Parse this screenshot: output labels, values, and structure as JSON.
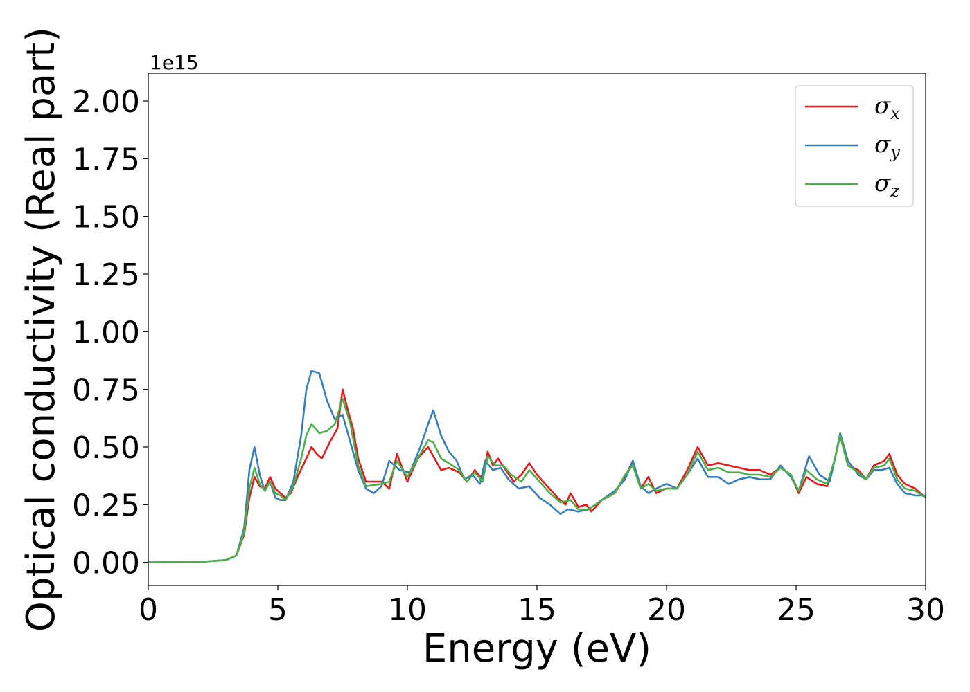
{
  "chart_data": {
    "type": "line",
    "title": "",
    "xlabel": "Energy (eV)",
    "ylabel": "Optical conductivity (Real part)",
    "y_offset_label": "1e15",
    "xlim": [
      0,
      30
    ],
    "ylim": [
      -0.1,
      2.12
    ],
    "x_ticks": [
      0,
      5,
      10,
      15,
      20,
      25,
      30
    ],
    "x_tick_labels": [
      "0",
      "5",
      "10",
      "15",
      "20",
      "25",
      "30"
    ],
    "y_ticks": [
      0.0,
      0.25,
      0.5,
      0.75,
      1.0,
      1.25,
      1.5,
      1.75,
      2.0
    ],
    "y_tick_labels": [
      "0.00",
      "0.25",
      "0.50",
      "0.75",
      "1.00",
      "1.25",
      "1.50",
      "1.75",
      "2.00"
    ],
    "grid": false,
    "legend_position": "top-right",
    "series": [
      {
        "name": "σx",
        "symbol": "σ",
        "subscript": "x",
        "color": "#e41a1c",
        "points": [
          [
            0,
            0
          ],
          [
            2,
            0.002
          ],
          [
            3,
            0.01
          ],
          [
            3.4,
            0.03
          ],
          [
            3.7,
            0.12
          ],
          [
            3.9,
            0.28
          ],
          [
            4.1,
            0.37
          ],
          [
            4.3,
            0.33
          ],
          [
            4.5,
            0.32
          ],
          [
            4.7,
            0.37
          ],
          [
            4.9,
            0.32
          ],
          [
            5.1,
            0.3
          ],
          [
            5.3,
            0.28
          ],
          [
            5.5,
            0.3
          ],
          [
            5.8,
            0.38
          ],
          [
            6.1,
            0.45
          ],
          [
            6.3,
            0.5
          ],
          [
            6.5,
            0.47
          ],
          [
            6.7,
            0.45
          ],
          [
            7.0,
            0.52
          ],
          [
            7.3,
            0.58
          ],
          [
            7.5,
            0.75
          ],
          [
            7.7,
            0.66
          ],
          [
            7.9,
            0.58
          ],
          [
            8.1,
            0.45
          ],
          [
            8.4,
            0.35
          ],
          [
            9.0,
            0.35
          ],
          [
            9.3,
            0.32
          ],
          [
            9.6,
            0.47
          ],
          [
            10.0,
            0.35
          ],
          [
            10.4,
            0.45
          ],
          [
            10.8,
            0.5
          ],
          [
            11.0,
            0.46
          ],
          [
            11.3,
            0.4
          ],
          [
            11.6,
            0.41
          ],
          [
            12.0,
            0.39
          ],
          [
            12.3,
            0.35
          ],
          [
            12.6,
            0.4
          ],
          [
            12.9,
            0.36
          ],
          [
            13.1,
            0.48
          ],
          [
            13.3,
            0.42
          ],
          [
            13.5,
            0.45
          ],
          [
            13.8,
            0.4
          ],
          [
            14.1,
            0.35
          ],
          [
            14.4,
            0.38
          ],
          [
            14.7,
            0.43
          ],
          [
            15.0,
            0.38
          ],
          [
            15.4,
            0.33
          ],
          [
            15.8,
            0.28
          ],
          [
            16.1,
            0.25
          ],
          [
            16.3,
            0.3
          ],
          [
            16.6,
            0.24
          ],
          [
            16.9,
            0.25
          ],
          [
            17.1,
            0.22
          ],
          [
            17.5,
            0.27
          ],
          [
            18.0,
            0.3
          ],
          [
            18.4,
            0.37
          ],
          [
            18.7,
            0.44
          ],
          [
            19.0,
            0.32
          ],
          [
            19.3,
            0.37
          ],
          [
            19.6,
            0.3
          ],
          [
            20.0,
            0.32
          ],
          [
            20.4,
            0.32
          ],
          [
            20.8,
            0.4
          ],
          [
            21.2,
            0.5
          ],
          [
            21.6,
            0.42
          ],
          [
            22.0,
            0.43
          ],
          [
            22.4,
            0.42
          ],
          [
            22.8,
            0.41
          ],
          [
            23.2,
            0.4
          ],
          [
            23.6,
            0.4
          ],
          [
            24.0,
            0.38
          ],
          [
            24.4,
            0.41
          ],
          [
            24.8,
            0.38
          ],
          [
            25.1,
            0.3
          ],
          [
            25.4,
            0.37
          ],
          [
            25.8,
            0.34
          ],
          [
            26.2,
            0.33
          ],
          [
            26.5,
            0.45
          ],
          [
            26.7,
            0.55
          ],
          [
            27.0,
            0.42
          ],
          [
            27.4,
            0.4
          ],
          [
            27.7,
            0.36
          ],
          [
            28.0,
            0.42
          ],
          [
            28.4,
            0.44
          ],
          [
            28.6,
            0.47
          ],
          [
            28.9,
            0.38
          ],
          [
            29.2,
            0.34
          ],
          [
            29.6,
            0.32
          ],
          [
            30,
            0.28
          ]
        ]
      },
      {
        "name": "σy",
        "symbol": "σ",
        "subscript": "y",
        "color": "#377eb8",
        "points": [
          [
            0,
            0
          ],
          [
            2,
            0.002
          ],
          [
            3,
            0.01
          ],
          [
            3.4,
            0.03
          ],
          [
            3.7,
            0.15
          ],
          [
            3.9,
            0.4
          ],
          [
            4.1,
            0.5
          ],
          [
            4.3,
            0.38
          ],
          [
            4.5,
            0.31
          ],
          [
            4.7,
            0.35
          ],
          [
            4.9,
            0.28
          ],
          [
            5.1,
            0.27
          ],
          [
            5.3,
            0.27
          ],
          [
            5.6,
            0.35
          ],
          [
            5.9,
            0.55
          ],
          [
            6.1,
            0.75
          ],
          [
            6.3,
            0.83
          ],
          [
            6.6,
            0.82
          ],
          [
            6.9,
            0.7
          ],
          [
            7.2,
            0.62
          ],
          [
            7.5,
            0.64
          ],
          [
            7.8,
            0.52
          ],
          [
            8.1,
            0.4
          ],
          [
            8.4,
            0.32
          ],
          [
            8.7,
            0.3
          ],
          [
            9.0,
            0.33
          ],
          [
            9.3,
            0.44
          ],
          [
            9.7,
            0.4
          ],
          [
            10.1,
            0.39
          ],
          [
            10.5,
            0.5
          ],
          [
            10.8,
            0.6
          ],
          [
            11.0,
            0.66
          ],
          [
            11.3,
            0.55
          ],
          [
            11.6,
            0.48
          ],
          [
            11.9,
            0.44
          ],
          [
            12.2,
            0.36
          ],
          [
            12.5,
            0.38
          ],
          [
            12.8,
            0.34
          ],
          [
            13.0,
            0.44
          ],
          [
            13.3,
            0.4
          ],
          [
            13.6,
            0.41
          ],
          [
            13.9,
            0.36
          ],
          [
            14.3,
            0.32
          ],
          [
            14.7,
            0.33
          ],
          [
            15.1,
            0.28
          ],
          [
            15.5,
            0.25
          ],
          [
            15.9,
            0.21
          ],
          [
            16.2,
            0.23
          ],
          [
            16.6,
            0.22
          ],
          [
            17.0,
            0.23
          ],
          [
            17.5,
            0.27
          ],
          [
            18.0,
            0.31
          ],
          [
            18.4,
            0.36
          ],
          [
            18.7,
            0.44
          ],
          [
            19.0,
            0.33
          ],
          [
            19.3,
            0.3
          ],
          [
            19.6,
            0.32
          ],
          [
            20.0,
            0.34
          ],
          [
            20.4,
            0.32
          ],
          [
            20.8,
            0.38
          ],
          [
            21.2,
            0.45
          ],
          [
            21.6,
            0.37
          ],
          [
            22.0,
            0.37
          ],
          [
            22.4,
            0.34
          ],
          [
            22.8,
            0.36
          ],
          [
            23.2,
            0.37
          ],
          [
            23.6,
            0.36
          ],
          [
            24.0,
            0.36
          ],
          [
            24.4,
            0.42
          ],
          [
            24.8,
            0.37
          ],
          [
            25.1,
            0.31
          ],
          [
            25.5,
            0.46
          ],
          [
            25.9,
            0.38
          ],
          [
            26.3,
            0.35
          ],
          [
            26.5,
            0.45
          ],
          [
            26.7,
            0.56
          ],
          [
            27.0,
            0.44
          ],
          [
            27.4,
            0.38
          ],
          [
            27.7,
            0.36
          ],
          [
            28.0,
            0.4
          ],
          [
            28.3,
            0.4
          ],
          [
            28.6,
            0.41
          ],
          [
            28.9,
            0.34
          ],
          [
            29.2,
            0.3
          ],
          [
            29.6,
            0.29
          ],
          [
            30,
            0.29
          ]
        ]
      },
      {
        "name": "σz",
        "symbol": "σ",
        "subscript": "z",
        "color": "#4daf4a",
        "points": [
          [
            0,
            0
          ],
          [
            2,
            0.002
          ],
          [
            3,
            0.01
          ],
          [
            3.4,
            0.03
          ],
          [
            3.7,
            0.13
          ],
          [
            3.9,
            0.32
          ],
          [
            4.1,
            0.41
          ],
          [
            4.3,
            0.34
          ],
          [
            4.5,
            0.31
          ],
          [
            4.7,
            0.35
          ],
          [
            4.9,
            0.3
          ],
          [
            5.1,
            0.29
          ],
          [
            5.3,
            0.27
          ],
          [
            5.6,
            0.33
          ],
          [
            5.9,
            0.45
          ],
          [
            6.1,
            0.55
          ],
          [
            6.3,
            0.6
          ],
          [
            6.6,
            0.56
          ],
          [
            6.9,
            0.57
          ],
          [
            7.2,
            0.6
          ],
          [
            7.5,
            0.71
          ],
          [
            7.8,
            0.6
          ],
          [
            8.1,
            0.42
          ],
          [
            8.4,
            0.33
          ],
          [
            9.0,
            0.34
          ],
          [
            9.3,
            0.35
          ],
          [
            9.6,
            0.44
          ],
          [
            10.0,
            0.37
          ],
          [
            10.4,
            0.45
          ],
          [
            10.8,
            0.53
          ],
          [
            11.0,
            0.52
          ],
          [
            11.3,
            0.45
          ],
          [
            11.6,
            0.43
          ],
          [
            12.0,
            0.4
          ],
          [
            12.3,
            0.35
          ],
          [
            12.6,
            0.39
          ],
          [
            12.9,
            0.35
          ],
          [
            13.1,
            0.46
          ],
          [
            13.4,
            0.42
          ],
          [
            13.7,
            0.42
          ],
          [
            14.0,
            0.38
          ],
          [
            14.4,
            0.35
          ],
          [
            14.7,
            0.4
          ],
          [
            15.1,
            0.35
          ],
          [
            15.5,
            0.3
          ],
          [
            15.9,
            0.26
          ],
          [
            16.3,
            0.27
          ],
          [
            16.6,
            0.23
          ],
          [
            17.0,
            0.23
          ],
          [
            17.5,
            0.27
          ],
          [
            18.0,
            0.3
          ],
          [
            18.4,
            0.38
          ],
          [
            18.7,
            0.42
          ],
          [
            19.0,
            0.32
          ],
          [
            19.3,
            0.34
          ],
          [
            19.6,
            0.31
          ],
          [
            20.0,
            0.32
          ],
          [
            20.4,
            0.32
          ],
          [
            20.8,
            0.38
          ],
          [
            21.2,
            0.48
          ],
          [
            21.6,
            0.4
          ],
          [
            22.0,
            0.41
          ],
          [
            22.4,
            0.39
          ],
          [
            22.8,
            0.39
          ],
          [
            23.2,
            0.38
          ],
          [
            23.6,
            0.38
          ],
          [
            24.0,
            0.37
          ],
          [
            24.4,
            0.41
          ],
          [
            24.8,
            0.38
          ],
          [
            25.1,
            0.31
          ],
          [
            25.4,
            0.4
          ],
          [
            25.8,
            0.36
          ],
          [
            26.2,
            0.34
          ],
          [
            26.5,
            0.45
          ],
          [
            26.7,
            0.55
          ],
          [
            27.0,
            0.42
          ],
          [
            27.4,
            0.39
          ],
          [
            27.7,
            0.36
          ],
          [
            28.0,
            0.41
          ],
          [
            28.4,
            0.42
          ],
          [
            28.6,
            0.45
          ],
          [
            28.9,
            0.36
          ],
          [
            29.2,
            0.32
          ],
          [
            29.6,
            0.31
          ],
          [
            30,
            0.28
          ]
        ]
      }
    ]
  }
}
